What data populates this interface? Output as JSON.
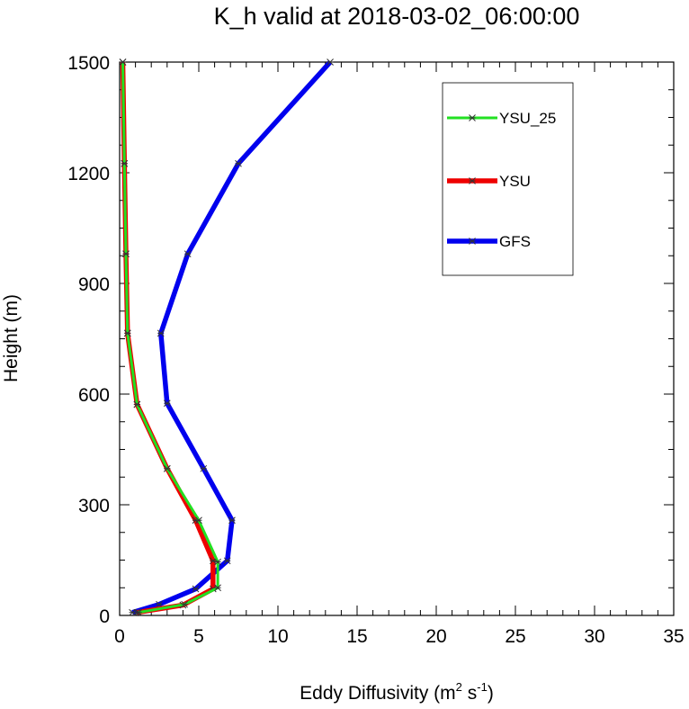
{
  "chart_data": {
    "type": "line",
    "title": "K_h valid at 2018-03-02_06:00:00",
    "xlabel_main": "Eddy Diffusivity (m",
    "xlabel_sup1": "2",
    "xlabel_mid": " s",
    "xlabel_sup2": "-1",
    "xlabel_end": ")",
    "ylabel": "Height (m)",
    "xlim": [
      0,
      35
    ],
    "ylim": [
      0,
      1500
    ],
    "x_ticks": [
      0,
      5,
      10,
      15,
      20,
      25,
      30,
      35
    ],
    "y_ticks": [
      0,
      300,
      600,
      900,
      1200,
      1500
    ],
    "x_tick_labels": [
      "0",
      "5",
      "10",
      "15",
      "20",
      "25",
      "30",
      "35"
    ],
    "y_tick_labels": [
      "0",
      "300",
      "600",
      "900",
      "1200",
      "1500"
    ],
    "legend_position": "top-right",
    "series": [
      {
        "name": "YSU_25",
        "color": "#22e022",
        "points": [
          [
            1.2,
            8
          ],
          [
            4.1,
            30
          ],
          [
            6.2,
            75
          ],
          [
            6.2,
            145
          ],
          [
            5.0,
            258
          ],
          [
            3.0,
            398
          ],
          [
            1.1,
            572
          ],
          [
            0.5,
            765
          ],
          [
            0.4,
            980
          ],
          [
            0.3,
            1225
          ],
          [
            0.2,
            1500
          ]
        ]
      },
      {
        "name": "YSU",
        "color": "#ee0000",
        "points": [
          [
            1.1,
            8
          ],
          [
            4.0,
            28
          ],
          [
            5.9,
            72
          ],
          [
            5.9,
            148
          ],
          [
            4.8,
            258
          ],
          [
            3.0,
            398
          ],
          [
            1.1,
            572
          ],
          [
            0.5,
            765
          ],
          [
            0.4,
            980
          ],
          [
            0.3,
            1225
          ],
          [
            0.2,
            1500
          ]
        ]
      },
      {
        "name": "GFS",
        "color": "#0000ee",
        "points": [
          [
            0.8,
            8
          ],
          [
            2.5,
            30
          ],
          [
            4.8,
            72
          ],
          [
            6.8,
            148
          ],
          [
            7.1,
            258
          ],
          [
            5.3,
            398
          ],
          [
            3.0,
            575
          ],
          [
            2.6,
            765
          ],
          [
            4.3,
            980
          ],
          [
            7.5,
            1225
          ],
          [
            13.3,
            1500
          ]
        ]
      }
    ]
  }
}
